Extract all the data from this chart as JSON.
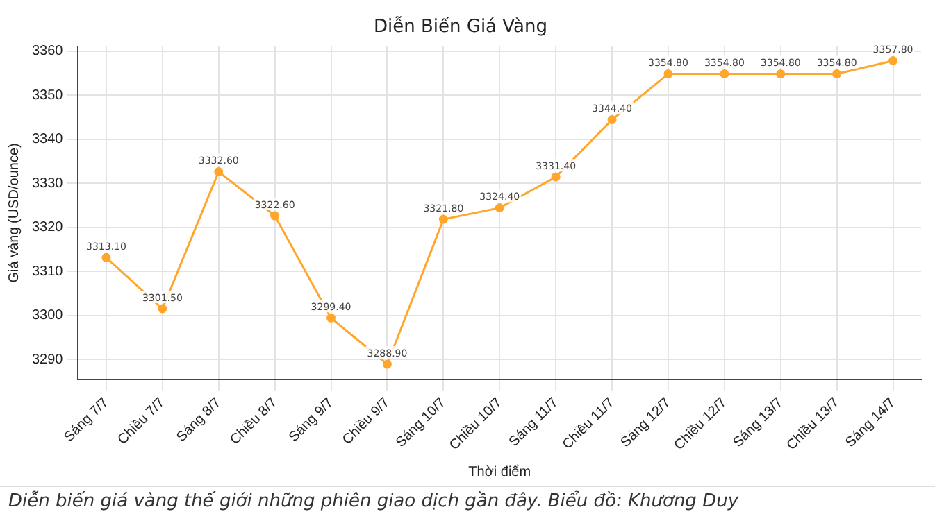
{
  "chart_data": {
    "type": "line",
    "title": "Diễn Biến Giá Vàng",
    "xlabel": "Thời điểm",
    "ylabel": "Giá vàng (USD/ounce)",
    "categories": [
      "Sáng 7/7",
      "Chiều 7/7",
      "Sáng 8/7",
      "Chiều 8/7",
      "Sáng 9/7",
      "Chiều 9/7",
      "Sáng 10/7",
      "Chiều 10/7",
      "Sáng 11/7",
      "Chiều 11/7",
      "Sáng 12/7",
      "Chiều 12/7",
      "Sáng 13/7",
      "Chiều 13/7",
      "Sáng 14/7"
    ],
    "values": [
      3313.1,
      3301.5,
      3332.6,
      3322.6,
      3299.4,
      3288.9,
      3321.8,
      3324.4,
      3331.4,
      3344.4,
      3354.8,
      3354.8,
      3354.8,
      3354.8,
      3357.8
    ],
    "value_labels": [
      "3313.10",
      "3301.50",
      "3332.60",
      "3322.60",
      "3299.40",
      "3288.90",
      "3321.80",
      "3324.40",
      "3331.40",
      "3344.40",
      "3354.80",
      "3354.80",
      "3354.80",
      "3354.80",
      "3357.80"
    ],
    "color": "#ffa62b",
    "marker": "circle",
    "line_style": "solid",
    "grid": true,
    "ylim": [
      3285.5,
      3361
    ],
    "yticks": [
      3290,
      3300,
      3310,
      3320,
      3330,
      3340,
      3350,
      3360
    ],
    "annotations": [
      "Diễn biến giá vàng thế giới những phiên giao dịch gần đây. Biểu đồ: Khương Duy"
    ]
  }
}
